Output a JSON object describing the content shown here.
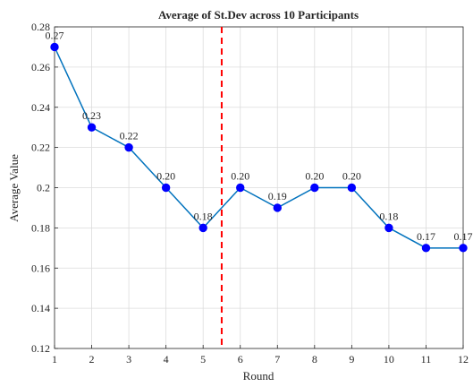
{
  "chart_data": {
    "type": "line",
    "title": "Average of St.Dev across 10 Participants",
    "xlabel": "Round",
    "ylabel": "Average Value",
    "x": [
      1,
      2,
      3,
      4,
      5,
      6,
      7,
      8,
      9,
      10,
      11,
      12
    ],
    "xticks": [
      "1",
      "2",
      "3",
      "4",
      "5",
      "6",
      "7",
      "8",
      "9",
      "10",
      "11",
      "12"
    ],
    "yticks": [
      "0.12",
      "0.14",
      "0.16",
      "0.18",
      "0.2",
      "0.22",
      "0.24",
      "0.26",
      "0.28"
    ],
    "xlim": [
      1,
      12
    ],
    "ylim": [
      0.12,
      0.28
    ],
    "grid": true,
    "series": [
      {
        "values": [
          0.27,
          0.23,
          0.22,
          0.2,
          0.18,
          0.2,
          0.19,
          0.2,
          0.2,
          0.18,
          0.17,
          0.17
        ],
        "labels": [
          "0.27",
          "0.23",
          "0.22",
          "0.20",
          "0.18",
          "0.20",
          "0.19",
          "0.20",
          "0.20",
          "0.18",
          "0.17",
          "0.17"
        ],
        "color": "#0072BD",
        "marker_color": "#0000FF"
      }
    ],
    "annotations": [
      {
        "type": "vertical-dashed-line",
        "x": 5.5,
        "color": "#FF0000"
      }
    ]
  }
}
